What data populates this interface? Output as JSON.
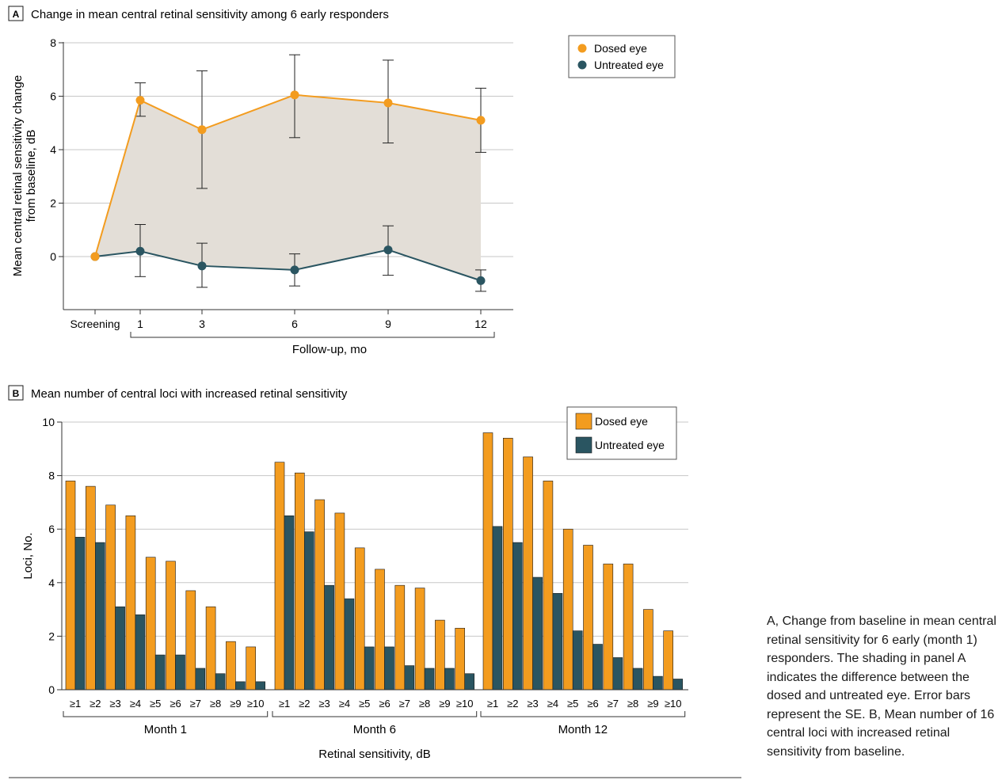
{
  "colors": {
    "dosed": "#f39c1f",
    "untreated": "#2a5561",
    "shade": "#e3ded7",
    "grid": "#c7c7c7",
    "axis": "#333333"
  },
  "caption": "A, Change from baseline in mean central retinal sensitivity for 6 early (month 1) responders. The shading in panel A indicates the difference between the dosed and untreated eye. Error bars represent the SE. B, Mean number of 16 central loci with increased retinal sensitivity from baseline.",
  "chart_data": [
    {
      "panel": "A",
      "type": "line",
      "title": "Change in mean central retinal sensitivity among 6 early responders",
      "ylabel": "Mean central retinal sensitivity change from baseline, dB",
      "ylabel_lines": [
        "Mean central retinal sensitivity change",
        "from baseline, dB"
      ],
      "xlabel": "Follow-up, mo",
      "categories": [
        "Screening",
        "1",
        "3",
        "6",
        "9",
        "12"
      ],
      "y_ticks": [
        "0",
        "2",
        "4",
        "6",
        "8"
      ],
      "ylim": [
        -2,
        8
      ],
      "grid": true,
      "legend": "top-right",
      "shaded_between_series": true,
      "series": [
        {
          "name": "Dosed eye",
          "values": [
            0,
            5.85,
            4.75,
            6.05,
            5.75,
            5.1
          ],
          "se_low": [
            null,
            5.25,
            2.55,
            4.45,
            4.25,
            3.9
          ],
          "se_high": [
            null,
            6.5,
            6.95,
            7.55,
            7.35,
            6.3
          ]
        },
        {
          "name": "Untreated eye",
          "values": [
            0,
            0.2,
            -0.35,
            -0.5,
            0.25,
            -0.9
          ],
          "se_low": [
            null,
            -0.75,
            -1.15,
            -1.1,
            -0.7,
            -1.3
          ],
          "se_high": [
            null,
            1.2,
            0.5,
            0.1,
            1.15,
            -0.5
          ]
        }
      ]
    },
    {
      "panel": "B",
      "type": "bar",
      "title": "Mean number of central loci with increased retinal sensitivity",
      "ylabel": "Loci, No.",
      "xlabel": "Retinal sensitivity, dB",
      "groups": [
        "Month 1",
        "Month 6",
        "Month 12"
      ],
      "categories": [
        "≥1",
        "≥2",
        "≥3",
        "≥4",
        "≥5",
        "≥6",
        "≥7",
        "≥8",
        "≥9",
        "≥10"
      ],
      "y_ticks": [
        "0",
        "2",
        "4",
        "6",
        "8",
        "10"
      ],
      "ylim": [
        0,
        10
      ],
      "grid": true,
      "legend": "top-right",
      "series": [
        {
          "name": "Dosed eye",
          "values": [
            [
              7.8,
              7.6,
              6.9,
              6.5,
              4.95,
              4.8,
              3.7,
              3.1,
              1.8,
              1.6
            ],
            [
              8.5,
              8.1,
              7.1,
              6.6,
              5.3,
              4.5,
              3.9,
              3.8,
              2.6,
              2.3
            ],
            [
              9.6,
              9.4,
              8.7,
              7.8,
              6.0,
              5.4,
              4.7,
              4.7,
              3.0,
              2.2
            ]
          ]
        },
        {
          "name": "Untreated eye",
          "values": [
            [
              5.7,
              5.5,
              3.1,
              2.8,
              1.3,
              1.3,
              0.8,
              0.6,
              0.3,
              0.3
            ],
            [
              6.5,
              5.9,
              3.9,
              3.4,
              1.6,
              1.6,
              0.9,
              0.8,
              0.8,
              0.6
            ],
            [
              6.1,
              5.5,
              4.2,
              3.6,
              2.2,
              1.7,
              1.2,
              0.8,
              0.5,
              0.4
            ]
          ]
        }
      ]
    }
  ]
}
